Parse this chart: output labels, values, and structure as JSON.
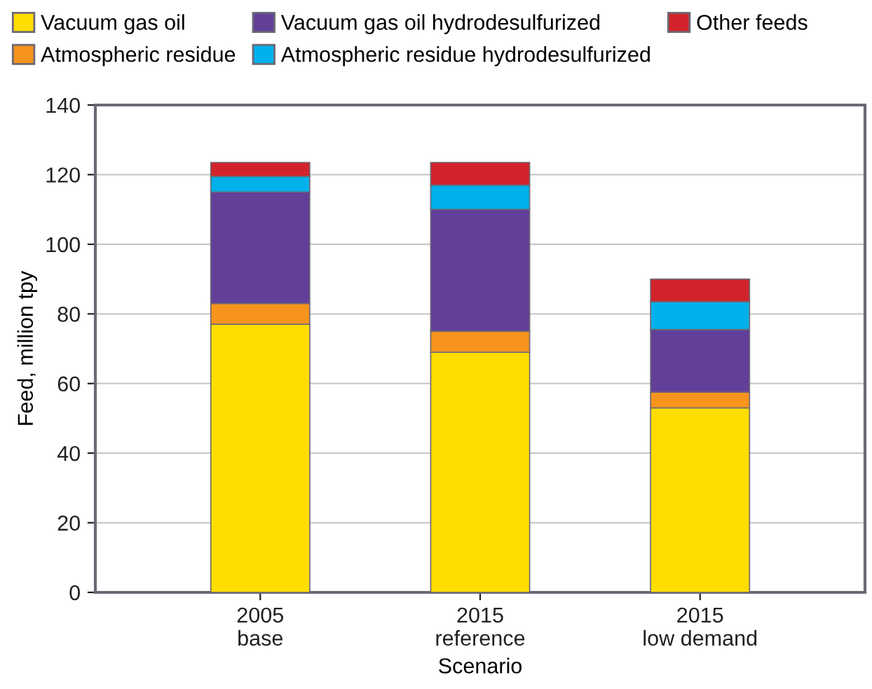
{
  "chart_data": {
    "type": "bar",
    "stacked": true,
    "xlabel": "Scenario",
    "ylabel": "Feed, million tpy",
    "categories": [
      "2005\nbase",
      "2015\nreference",
      "2015\nlow demand"
    ],
    "series": [
      {
        "name": "Vacuum gas oil",
        "color": "#ffdd00",
        "values": [
          77,
          69,
          53
        ]
      },
      {
        "name": "Atmospheric residue",
        "color": "#f7941d",
        "values": [
          6,
          6,
          4.5
        ]
      },
      {
        "name": "Vacuum gas oil hydrodesulfurized",
        "color": "#623f99",
        "values": [
          32,
          35,
          18
        ]
      },
      {
        "name": "Atmospheric residue hydrodesulfurized",
        "color": "#00b0ea",
        "values": [
          4.5,
          7,
          8
        ]
      },
      {
        "name": "Other feeds",
        "color": "#d2232a",
        "values": [
          4,
          6.5,
          6.5
        ]
      }
    ],
    "ylim": [
      0,
      140
    ],
    "yticks": [
      0,
      20,
      40,
      60,
      80,
      100,
      120,
      140
    ],
    "grid": "y",
    "legend": "top"
  }
}
